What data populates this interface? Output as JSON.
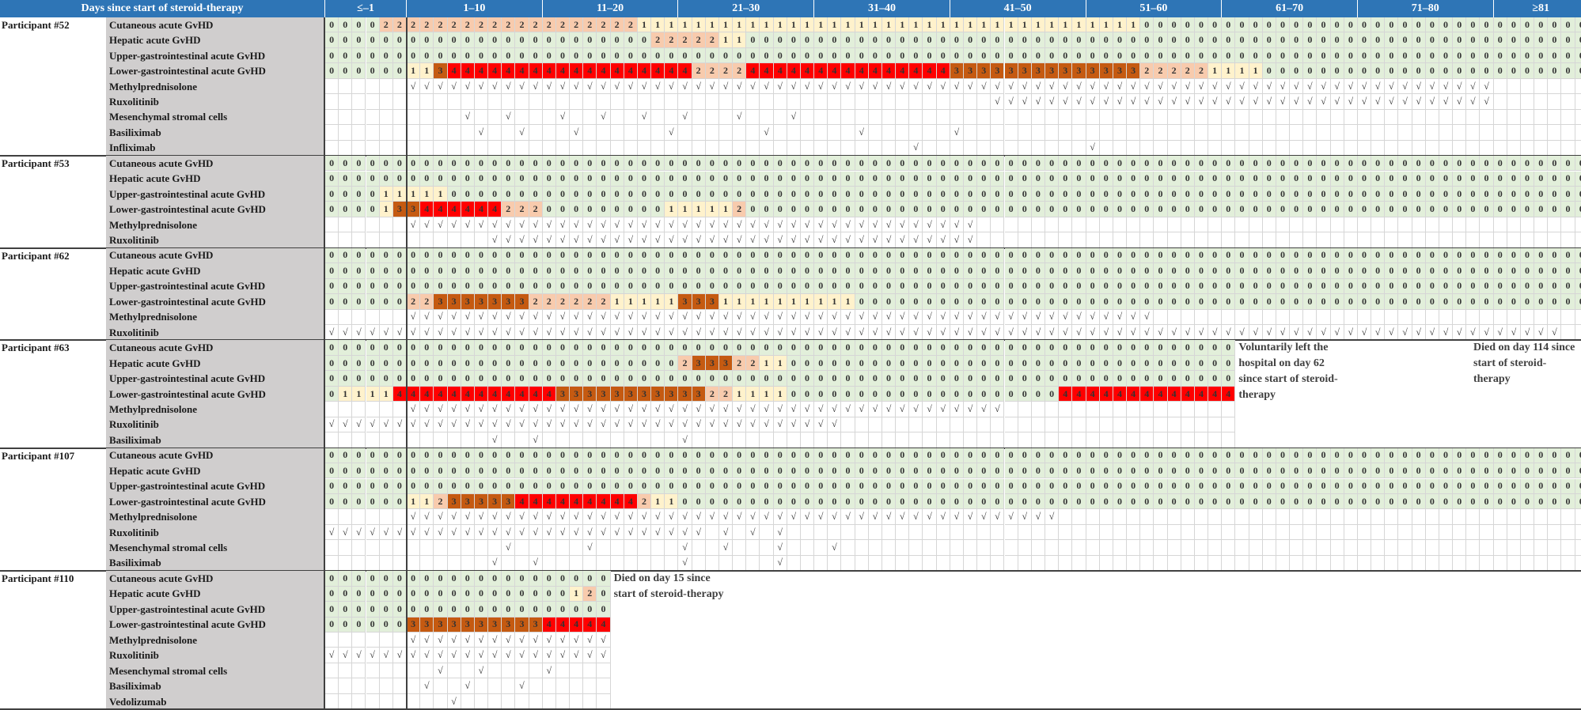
{
  "chart_data": {
    "type": "table",
    "header_label": "Days since start of steroid-therapy",
    "day_groups": [
      {
        "label": "≤–1",
        "days": 6
      },
      {
        "label": "1–10",
        "days": 10
      },
      {
        "label": "11–20",
        "days": 10
      },
      {
        "label": "21–30",
        "days": 10
      },
      {
        "label": "31–40",
        "days": 10
      },
      {
        "label": "41–50",
        "days": 10
      },
      {
        "label": "51–60",
        "days": 10
      },
      {
        "label": "61–70",
        "days": 10
      },
      {
        "label": "71–80",
        "days": 10
      },
      {
        "label": "≥81",
        "days": 7
      }
    ],
    "check_symbol": "√",
    "grade_colors": {
      "0": "#e2efda",
      "1": "#fff2cc",
      "2": "#f8cbad",
      "3": "#c55a11",
      "4": "#ff0000"
    },
    "participants": [
      {
        "name": "Participant #52",
        "rows": [
          {
            "label": "Cutaneous acute GvHD",
            "type": "grade",
            "values": "000022222222222222222221111111111111111111111111111111111111000000000000000000000000000000000"
          },
          {
            "label": "Hepatic acute GvHD",
            "type": "grade",
            "values": "000000000000000000000000222221100000000000000000000000000000000000000000000000000000000000000"
          },
          {
            "label": "Upper-gastrointestinal acute GvHD",
            "type": "grade",
            "values": "000000000000000000000000000000000000000000000000000000000000000000000000000000000000000000000"
          },
          {
            "label": "Lower-gastrointestinal acute GvHD",
            "type": "grade",
            "values": "000000113444444444444444444222244444444444444433333333333333222221111000000000000000000000000"
          },
          {
            "label": "Methylprednisolone",
            "type": "check",
            "days": "6-85"
          },
          {
            "label": "Ruxolitinib",
            "type": "check",
            "days": "49-85"
          },
          {
            "label": "Mesenchymal stromal cells",
            "type": "check",
            "days": "10,13,17,20,23,26,30,34"
          },
          {
            "label": "Basiliximab",
            "type": "check",
            "days": "11,14,18,25,32,39,46"
          },
          {
            "label": "Infliximab",
            "type": "check",
            "days": "43,56"
          }
        ]
      },
      {
        "name": "Participant #53",
        "rows": [
          {
            "label": "Cutaneous acute GvHD",
            "type": "grade",
            "values": "000000000000000000000000000000000000000000000000000000000000000000000000000000000000000000000"
          },
          {
            "label": "Hepatic acute GvHD",
            "type": "grade",
            "values": "000000000000000000000000000000000000000000000000000000000000000000000000000000000000000000000"
          },
          {
            "label": "Upper-gastrointestinal acute GvHD",
            "type": "grade",
            "values": "000011111000000000000000000000000000000000000000000000000000000000000000000000000000000000000"
          },
          {
            "label": "Lower-gastrointestinal acute GvHD",
            "type": "grade",
            "values": "000013344444422200000000011111200000000000000000000000000000000000000000000000000000000000000"
          },
          {
            "label": "Methylprednisolone",
            "type": "check",
            "days": "6-47"
          },
          {
            "label": "Ruxolitinib",
            "type": "check",
            "days": "12-47"
          }
        ]
      },
      {
        "name": "Participant #62",
        "rows": [
          {
            "label": "Cutaneous acute GvHD",
            "type": "grade",
            "values": "000000000000000000000000000000000000000000000000000000000000000000000000000000000000000000000"
          },
          {
            "label": "Hepatic acute GvHD",
            "type": "grade",
            "values": "000000000000000000000000000000000000000000000000000000000000000000000000000000000000000000000"
          },
          {
            "label": "Upper-gastrointestinal acute GvHD",
            "type": "grade",
            "values": "000000000000000000000000000000000000000000000000000000000000000000000000000000000000000000000"
          },
          {
            "label": "Lower-gastrointestinal acute GvHD",
            "type": "grade",
            "values": "000000223333333222222111113331111111111000000000000000000000000000000000000000000000000000000"
          },
          {
            "label": "Methylprednisolone",
            "type": "check",
            "days": "6-60"
          },
          {
            "label": "Ruxolitinib",
            "type": "check",
            "days": "0-90"
          }
        ]
      },
      {
        "name": "Participant #63",
        "rows": [
          {
            "label": "Cutaneous acute GvHD",
            "type": "grade",
            "values": "0000000000000000000000000000000000000000000000000000000000000000000"
          },
          {
            "label": "Hepatic acute GvHD",
            "type": "grade",
            "values": "0000000000000000000000000023332211000000000000000000000000000000000"
          },
          {
            "label": "Upper-gastrointestinal acute GvHD",
            "type": "grade",
            "values": "0000000000000000000000000000000000000000000000000000000000000000000"
          },
          {
            "label": "Lower-gastrointestinal acute GvHD",
            "type": "grade",
            "values": "0111144444444444433333333333221111000000000000000000004444444444444"
          },
          {
            "label": "Methylprednisolone",
            "type": "check",
            "days": "6-49"
          },
          {
            "label": "Ruxolitinib",
            "type": "check",
            "days": "0-37"
          },
          {
            "label": "Basiliximab",
            "type": "check",
            "days": "12,15,26"
          }
        ],
        "note": "Voluntarily left the hospital on day 62 since start of steroid-therapy",
        "note2": "Died on day 114 since start of steroid-therapy"
      },
      {
        "name": "Participant #107",
        "rows": [
          {
            "label": "Cutaneous acute GvHD",
            "type": "grade",
            "values": "000000000000000000000000000000000000000000000000000000000000000000000000000000000000000000000"
          },
          {
            "label": "Hepatic acute GvHD",
            "type": "grade",
            "values": "000000000000000000000000000000000000000000000000000000000000000000000000000000000000000000000"
          },
          {
            "label": "Upper-gastrointestinal acute GvHD",
            "type": "grade",
            "values": "000000000000000000000000000000000000000000000000000000000000000000000000000000000000000000000"
          },
          {
            "label": "Lower-gastrointestinal acute GvHD",
            "type": "grade",
            "values": "000000112333334444444442110000000000000000000000000000000000000000000000000000000000000000000"
          },
          {
            "label": "Methylprednisolone",
            "type": "check",
            "days": "6-53"
          },
          {
            "label": "Ruxolitinib",
            "type": "check",
            "days": "0-27,29,31,33"
          },
          {
            "label": "Mesenchymal stromal cells",
            "type": "check",
            "days": "13,19,26,29,33,37"
          },
          {
            "label": "Basiliximab",
            "type": "check",
            "days": "12,15,26,33"
          }
        ]
      },
      {
        "name": "Participant #110",
        "rows": [
          {
            "label": "Cutaneous acute GvHD",
            "type": "grade",
            "values": "000000000000000000000"
          },
          {
            "label": "Hepatic acute GvHD",
            "type": "grade",
            "values": "000000000000000000120"
          },
          {
            "label": "Upper-gastrointestinal acute GvHD",
            "type": "grade",
            "values": "000000000000000000000"
          },
          {
            "label": "Lower-gastrointestinal acute GvHD",
            "type": "grade",
            "values": "000000333333333344444"
          },
          {
            "label": "Methylprednisolone",
            "type": "check",
            "days": "6-20"
          },
          {
            "label": "Ruxolitinib",
            "type": "check",
            "days": "0-20"
          },
          {
            "label": "Mesenchymal stromal cells",
            "type": "check",
            "days": "8,11,16"
          },
          {
            "label": "Basiliximab",
            "type": "check",
            "days": "7,10,14"
          },
          {
            "label": "Vedolizumab",
            "type": "check",
            "days": "9"
          }
        ],
        "note": "Died on day 15 since start of steroid-therapy"
      }
    ]
  }
}
